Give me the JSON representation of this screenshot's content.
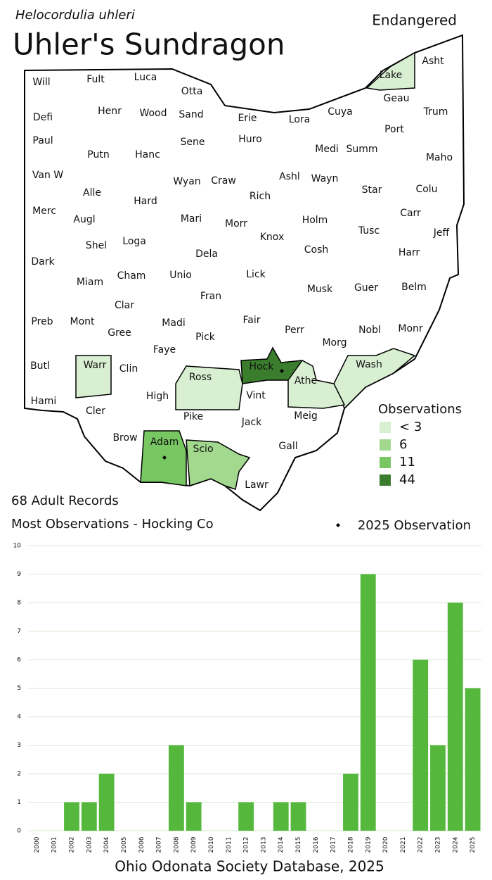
{
  "header": {
    "scientific_name": "Helocordulia uhleri",
    "title": "Uhler's Sundragon",
    "status": "Endangered"
  },
  "map": {
    "counties": [
      {
        "name": "Will"
      },
      {
        "name": "Fult"
      },
      {
        "name": "Luca"
      },
      {
        "name": "Otta"
      },
      {
        "name": "Lake",
        "color": "#d8efd2"
      },
      {
        "name": "Asht"
      },
      {
        "name": "Defi"
      },
      {
        "name": "Henr"
      },
      {
        "name": "Wood"
      },
      {
        "name": "Sand"
      },
      {
        "name": "Erie"
      },
      {
        "name": "Lora"
      },
      {
        "name": "Cuya"
      },
      {
        "name": "Geau"
      },
      {
        "name": "Trum"
      },
      {
        "name": "Paul"
      },
      {
        "name": "Putn"
      },
      {
        "name": "Hanc"
      },
      {
        "name": "Sene"
      },
      {
        "name": "Huro"
      },
      {
        "name": "Medi"
      },
      {
        "name": "Summ"
      },
      {
        "name": "Port"
      },
      {
        "name": "Maho"
      },
      {
        "name": "Van W"
      },
      {
        "name": "Alle"
      },
      {
        "name": "Hard"
      },
      {
        "name": "Wyan"
      },
      {
        "name": "Craw"
      },
      {
        "name": "Rich"
      },
      {
        "name": "Ashl"
      },
      {
        "name": "Wayn"
      },
      {
        "name": "Star"
      },
      {
        "name": "Colu"
      },
      {
        "name": "Merc"
      },
      {
        "name": "Augl"
      },
      {
        "name": "Mari"
      },
      {
        "name": "Morr"
      },
      {
        "name": "Holm"
      },
      {
        "name": "Tusc"
      },
      {
        "name": "Carr"
      },
      {
        "name": "Jeff"
      },
      {
        "name": "Shel"
      },
      {
        "name": "Loga"
      },
      {
        "name": "Dela"
      },
      {
        "name": "Knox"
      },
      {
        "name": "Cosh"
      },
      {
        "name": "Harr"
      },
      {
        "name": "Dark"
      },
      {
        "name": "Cham"
      },
      {
        "name": "Unio"
      },
      {
        "name": "Lick"
      },
      {
        "name": "Musk"
      },
      {
        "name": "Guer"
      },
      {
        "name": "Belm"
      },
      {
        "name": "Miam"
      },
      {
        "name": "Clar"
      },
      {
        "name": "Fran"
      },
      {
        "name": "Fair"
      },
      {
        "name": "Madi"
      },
      {
        "name": "Preb"
      },
      {
        "name": "Mont"
      },
      {
        "name": "Gree"
      },
      {
        "name": "Perr"
      },
      {
        "name": "Nobl"
      },
      {
        "name": "Monr"
      },
      {
        "name": "Faye"
      },
      {
        "name": "Pick"
      },
      {
        "name": "Morg"
      },
      {
        "name": "Butl"
      },
      {
        "name": "Warr",
        "color": "#d8efd2"
      },
      {
        "name": "Clin"
      },
      {
        "name": "Hock",
        "color": "#3a7d2c",
        "observed_2025": true
      },
      {
        "name": "Wash",
        "color": "#d8efd2"
      },
      {
        "name": "Ross",
        "color": "#d8efd2"
      },
      {
        "name": "Athe",
        "color": "#d8efd2"
      },
      {
        "name": "High"
      },
      {
        "name": "Vint"
      },
      {
        "name": "Hami"
      },
      {
        "name": "Cler"
      },
      {
        "name": "Pike"
      },
      {
        "name": "Jack"
      },
      {
        "name": "Meig"
      },
      {
        "name": "Brow"
      },
      {
        "name": "Adam",
        "color": "#78c763",
        "observed_2025": true
      },
      {
        "name": "Scio",
        "color": "#a3d98f"
      },
      {
        "name": "Gall"
      },
      {
        "name": "Lawr"
      }
    ],
    "legend": {
      "title": "Observations",
      "items": [
        {
          "label": "< 3",
          "color": "#d8efd2"
        },
        {
          "label": "6",
          "color": "#a3d98f"
        },
        {
          "label": "11",
          "color": "#78c763"
        },
        {
          "label": "44",
          "color": "#3a7d2c"
        }
      ]
    },
    "dot_legend": "2025  Observation"
  },
  "summary": {
    "records": "68 Adult Records",
    "most": "Most Observations - Hocking Co"
  },
  "chart_data": {
    "type": "bar",
    "categories": [
      "2000",
      "2001",
      "2002",
      "2003",
      "2004",
      "2005",
      "2006",
      "2007",
      "2008",
      "2009",
      "2010",
      "2011",
      "2012",
      "2013",
      "2014",
      "2015",
      "2016",
      "2017",
      "2018",
      "2019",
      "2020",
      "2021",
      "2022",
      "2023",
      "2024",
      "2025"
    ],
    "values": [
      0,
      0,
      1,
      1,
      2,
      0,
      0,
      0,
      3,
      1,
      0,
      0,
      1,
      0,
      1,
      1,
      0,
      0,
      2,
      9,
      0,
      0,
      6,
      3,
      8,
      5
    ],
    "color": "#55b83c",
    "ylim": [
      0,
      10
    ],
    "yticks": [
      0,
      1,
      2,
      3,
      4,
      5,
      6,
      7,
      8,
      9,
      10
    ],
    "grid": true
  },
  "footer": "Ohio Odonata Society Database, 2025"
}
